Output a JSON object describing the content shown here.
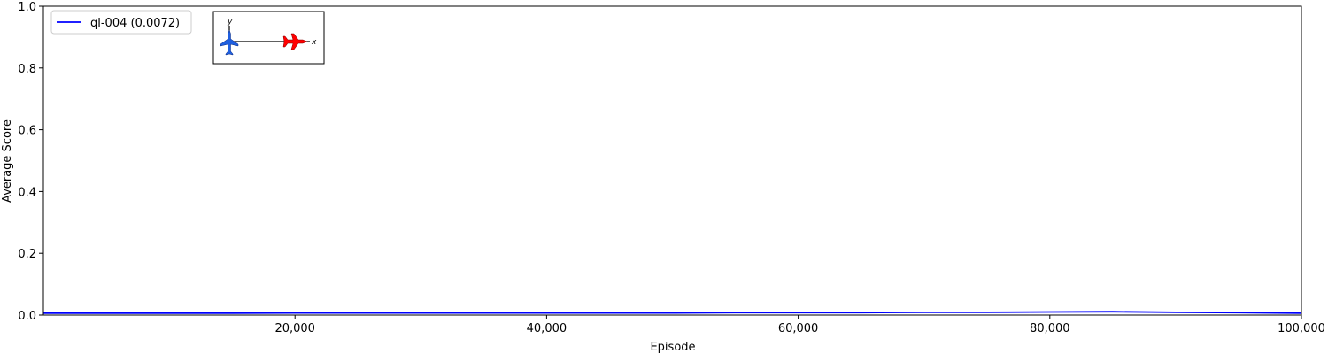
{
  "chart_data": {
    "type": "line",
    "xlabel": "Episode",
    "ylabel": "Average Score",
    "xlim": [
      0,
      100000
    ],
    "ylim": [
      0,
      1.0
    ],
    "x_ticks": [
      {
        "value": 20000,
        "label": "20,000"
      },
      {
        "value": 40000,
        "label": "40,000"
      },
      {
        "value": 60000,
        "label": "60,000"
      },
      {
        "value": 80000,
        "label": "80,000"
      },
      {
        "value": 100000,
        "label": "100,000"
      }
    ],
    "y_ticks": [
      {
        "value": 0.0,
        "label": "0.0"
      },
      {
        "value": 0.2,
        "label": "0.2"
      },
      {
        "value": 0.4,
        "label": "0.4"
      },
      {
        "value": 0.6,
        "label": "0.6"
      },
      {
        "value": 0.8,
        "label": "0.8"
      },
      {
        "value": 1.0,
        "label": "1.0"
      }
    ],
    "grid": false,
    "legend_position": "top-left",
    "series": [
      {
        "name": "ql-004 (0.0072)",
        "color": "#0000ff",
        "x": [
          0,
          5000,
          10000,
          15000,
          20000,
          25000,
          30000,
          35000,
          40000,
          45000,
          50000,
          55000,
          60000,
          65000,
          70000,
          75000,
          80000,
          85000,
          90000,
          95000,
          100000
        ],
        "y": [
          0.006,
          0.006,
          0.006,
          0.006,
          0.007,
          0.007,
          0.007,
          0.007,
          0.007,
          0.007,
          0.007,
          0.008,
          0.008,
          0.008,
          0.009,
          0.009,
          0.01,
          0.011,
          0.009,
          0.008,
          0.006
        ]
      }
    ],
    "inset": {
      "x_axis_label": "x",
      "y_axis_label": "y",
      "blue_color": "#1f5fe0",
      "red_color": "#ff0000"
    }
  }
}
